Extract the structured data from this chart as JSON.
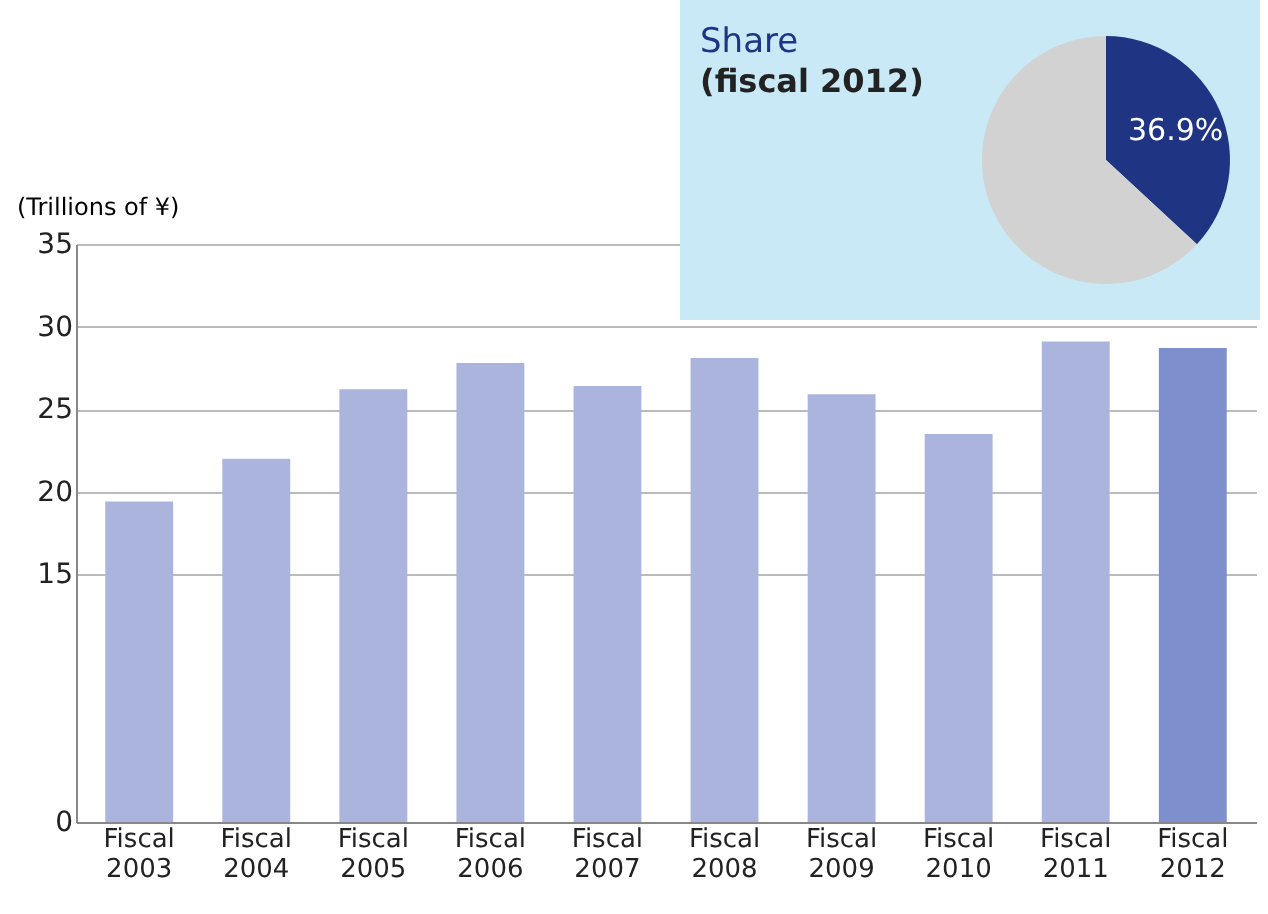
{
  "chart_data": [
    {
      "type": "bar",
      "ylabel": "(Trillions of ¥)",
      "categories": [
        "Fiscal 2003",
        "Fiscal 2004",
        "Fiscal 2005",
        "Fiscal 2006",
        "Fiscal 2007",
        "Fiscal 2008",
        "Fiscal 2009",
        "Fiscal 2010",
        "Fiscal 2011",
        "Fiscal 2012"
      ],
      "values": [
        19.4,
        22.0,
        26.2,
        27.8,
        26.4,
        28.1,
        25.9,
        23.5,
        29.1,
        28.7
      ],
      "colors": [
        "#aab4dc",
        "#aab4dc",
        "#aab4dc",
        "#aab4dc",
        "#aab4dc",
        "#aab4dc",
        "#aab4dc",
        "#aab4dc",
        "#aab4dc",
        "#7d8fcc"
      ],
      "ylim": [
        0,
        35
      ],
      "yticks": [
        0,
        15,
        20,
        25,
        30,
        35
      ],
      "grid": "y"
    },
    {
      "type": "pie",
      "title": "Share",
      "subtitle": "(fiscal 2012)",
      "categories": [
        null,
        null
      ],
      "values": [
        36.9,
        63.1
      ],
      "colors": [
        "#1f3583",
        "#d2d2d2"
      ],
      "value_labels": [
        "36.9%",
        null
      ]
    }
  ]
}
